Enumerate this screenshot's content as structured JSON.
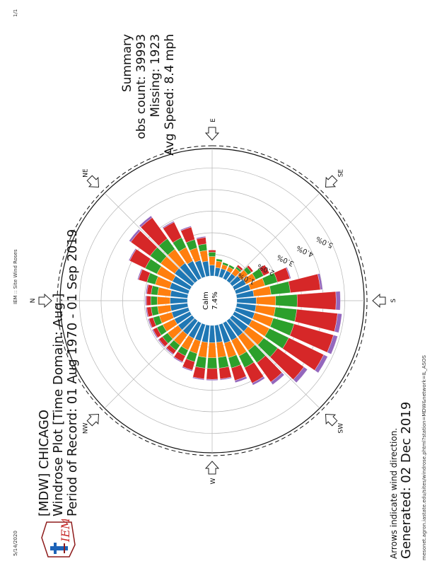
{
  "page": {
    "header_left": "5/14/2020",
    "header_center": "IEM :: Site Wind Roses",
    "header_right": "1/1",
    "url": "mesonet.agron.iastate.edu/sites/windrose.phtml?station=MDW&network=IL_ASOS"
  },
  "logo": {
    "text": "IEM",
    "name": "iem-logo"
  },
  "title": {
    "line1": "[MDW] CHICAGO",
    "line2": "Windrose Plot [Time Domain: Aug.]",
    "line3": "Period of Record: 01 Aug 1970 - 01 Sep 2019"
  },
  "summary": {
    "title": "Summary",
    "obs": "obs count: 39993",
    "missing": "Missing: 1923",
    "avg": "Avg Speed: 8.4 mph"
  },
  "footer": {
    "note": "Arrows indicate wind direction.",
    "generated": "Generated: 02 Dec 2019"
  },
  "chart_data": {
    "type": "windrose",
    "calm_label": "Calm",
    "calm_value": "7.4%",
    "compass": [
      "N",
      "NE",
      "E",
      "SE",
      "S",
      "SW",
      "W",
      "NW"
    ],
    "radial_ticks": [
      "0.0%",
      "1.0%",
      "2.0%",
      "3.0%",
      "4.0%",
      "5.0%"
    ],
    "radial_max": 5.9,
    "colors": [
      "#1f77b4",
      "#ff7f0e",
      "#2ca02c",
      "#d62728",
      "#9467bd"
    ],
    "directions": [
      {
        "deg": 0,
        "bands": [
          0.8,
          0.6,
          0.3,
          0.2,
          0.05
        ]
      },
      {
        "deg": 10,
        "bands": [
          0.8,
          0.6,
          0.3,
          0.2,
          0.05
        ]
      },
      {
        "deg": 20,
        "bands": [
          0.9,
          0.7,
          0.4,
          0.4,
          0.05
        ]
      },
      {
        "deg": 30,
        "bands": [
          0.9,
          0.8,
          0.6,
          0.8,
          0.05
        ]
      },
      {
        "deg": 40,
        "bands": [
          1.0,
          0.8,
          0.6,
          1.1,
          0.1
        ]
      },
      {
        "deg": 50,
        "bands": [
          1.0,
          0.8,
          0.6,
          1.2,
          0.1
        ]
      },
      {
        "deg": 60,
        "bands": [
          0.9,
          0.7,
          0.5,
          0.8,
          0.05
        ]
      },
      {
        "deg": 70,
        "bands": [
          0.8,
          0.6,
          0.4,
          0.6,
          0.05
        ]
      },
      {
        "deg": 80,
        "bands": [
          0.7,
          0.5,
          0.3,
          0.3,
          0.05
        ]
      },
      {
        "deg": 90,
        "bands": [
          0.5,
          0.4,
          0.2,
          0.1,
          0.0
        ]
      },
      {
        "deg": 100,
        "bands": [
          0.4,
          0.3,
          0.1,
          0.0,
          0.0
        ]
      },
      {
        "deg": 110,
        "bands": [
          0.4,
          0.2,
          0.1,
          0.0,
          0.0
        ]
      },
      {
        "deg": 120,
        "bands": [
          0.4,
          0.2,
          0.1,
          0.0,
          0.0
        ]
      },
      {
        "deg": 130,
        "bands": [
          0.4,
          0.3,
          0.1,
          0.1,
          0.0
        ]
      },
      {
        "deg": 140,
        "bands": [
          0.5,
          0.4,
          0.2,
          0.1,
          0.0
        ]
      },
      {
        "deg": 150,
        "bands": [
          0.6,
          0.5,
          0.4,
          0.3,
          0.0
        ]
      },
      {
        "deg": 160,
        "bands": [
          0.7,
          0.7,
          0.6,
          0.6,
          0.05
        ]
      },
      {
        "deg": 170,
        "bands": [
          0.8,
          0.8,
          0.9,
          1.4,
          0.1
        ]
      },
      {
        "deg": 180,
        "bands": [
          0.9,
          0.9,
          1.0,
          1.8,
          0.2
        ]
      },
      {
        "deg": 190,
        "bands": [
          0.9,
          0.9,
          1.0,
          1.9,
          0.2
        ]
      },
      {
        "deg": 200,
        "bands": [
          0.9,
          0.9,
          1.0,
          1.9,
          0.2
        ]
      },
      {
        "deg": 210,
        "bands": [
          0.9,
          0.9,
          1.0,
          1.8,
          0.2
        ]
      },
      {
        "deg": 220,
        "bands": [
          0.9,
          0.9,
          0.8,
          1.5,
          0.2
        ]
      },
      {
        "deg": 230,
        "bands": [
          0.9,
          0.8,
          0.7,
          1.1,
          0.15
        ]
      },
      {
        "deg": 240,
        "bands": [
          0.9,
          0.8,
          0.6,
          0.8,
          0.1
        ]
      },
      {
        "deg": 250,
        "bands": [
          0.9,
          0.7,
          0.5,
          0.6,
          0.1
        ]
      },
      {
        "deg": 260,
        "bands": [
          0.8,
          0.7,
          0.5,
          0.5,
          0.05
        ]
      },
      {
        "deg": 270,
        "bands": [
          0.8,
          0.7,
          0.5,
          0.5,
          0.05
        ]
      },
      {
        "deg": 280,
        "bands": [
          0.8,
          0.7,
          0.5,
          0.5,
          0.05
        ]
      },
      {
        "deg": 290,
        "bands": [
          0.8,
          0.6,
          0.4,
          0.4,
          0.05
        ]
      },
      {
        "deg": 300,
        "bands": [
          0.8,
          0.6,
          0.3,
          0.3,
          0.05
        ]
      },
      {
        "deg": 310,
        "bands": [
          0.8,
          0.6,
          0.3,
          0.2,
          0.05
        ]
      },
      {
        "deg": 320,
        "bands": [
          0.8,
          0.6,
          0.3,
          0.2,
          0.05
        ]
      },
      {
        "deg": 330,
        "bands": [
          0.8,
          0.6,
          0.3,
          0.2,
          0.05
        ]
      },
      {
        "deg": 340,
        "bands": [
          0.8,
          0.6,
          0.3,
          0.2,
          0.05
        ]
      },
      {
        "deg": 350,
        "bands": [
          0.8,
          0.6,
          0.3,
          0.2,
          0.05
        ]
      }
    ]
  }
}
